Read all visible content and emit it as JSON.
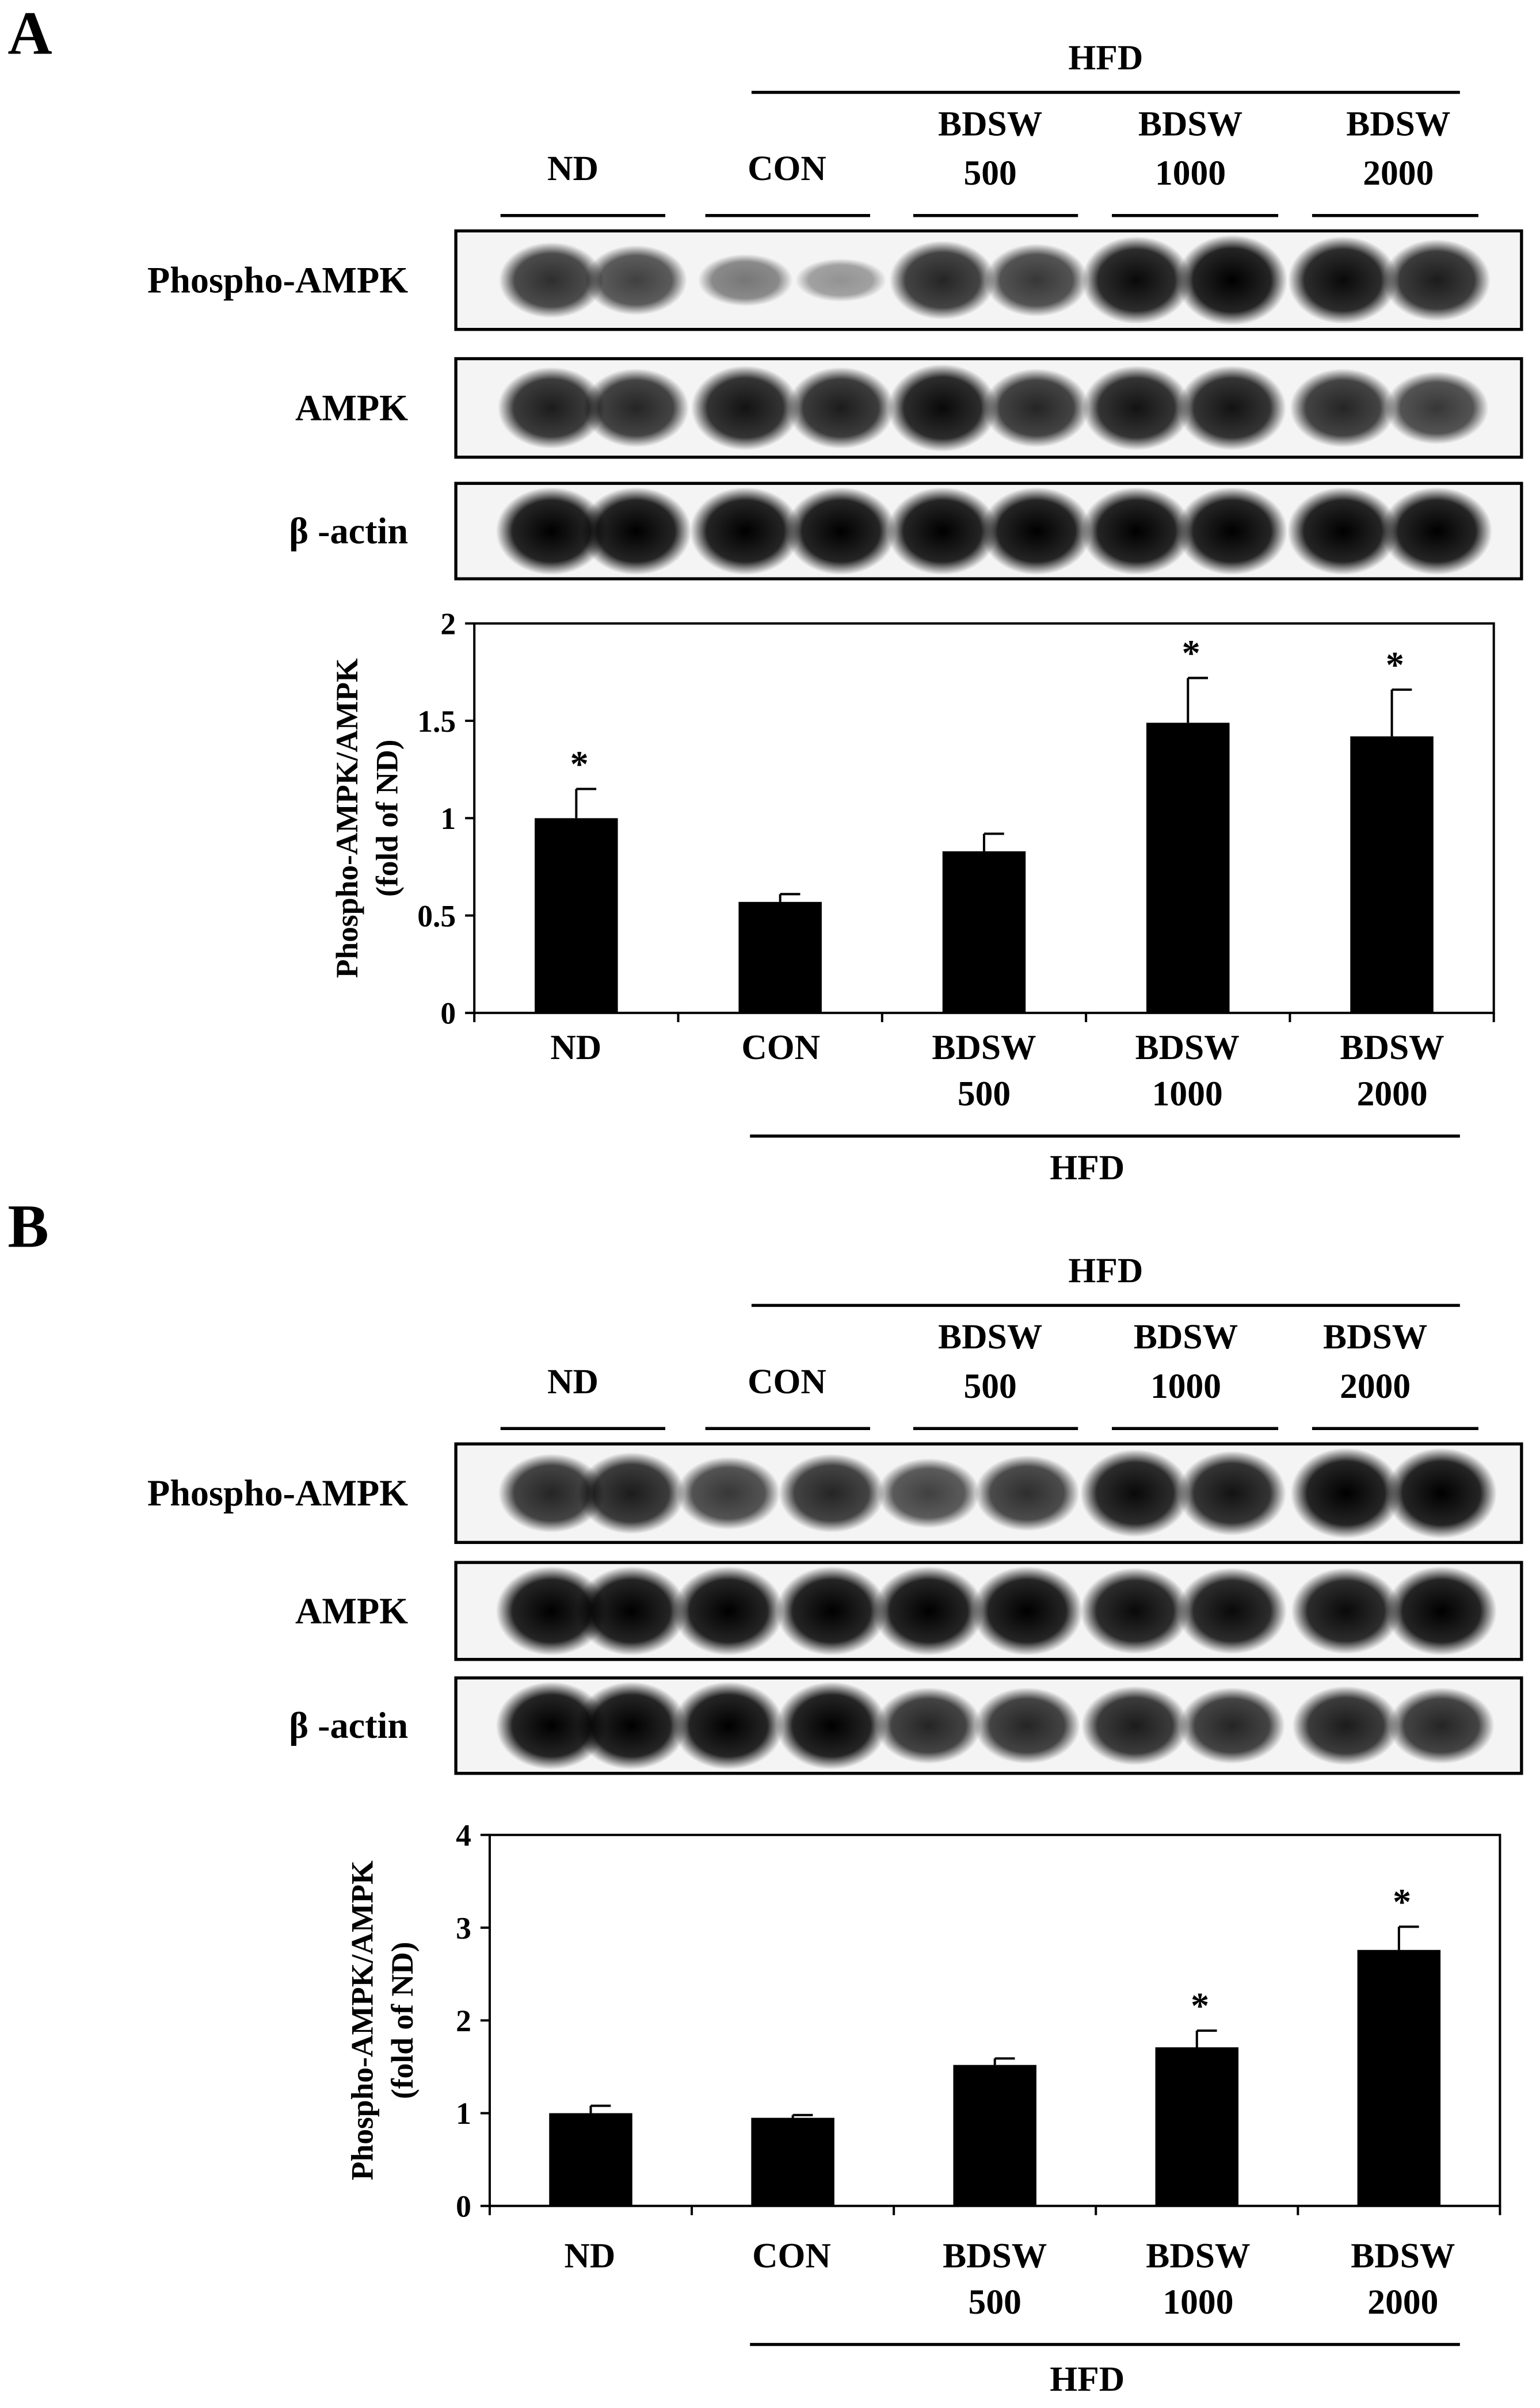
{
  "panels": [
    {
      "letter": "A",
      "group_label": "HFD",
      "blot_groups": [
        {
          "lines": [
            "ND"
          ]
        },
        {
          "lines": [
            "CON"
          ]
        },
        {
          "lines": [
            "BDSW",
            "500"
          ]
        },
        {
          "lines": [
            "BDSW",
            "1000"
          ]
        },
        {
          "lines": [
            "BDSW",
            "2000"
          ]
        }
      ],
      "blots": [
        {
          "label": "Phospho-AMPK",
          "lane_intensity": [
            0.75,
            0.65,
            0.35,
            0.2,
            0.8,
            0.7,
            0.95,
            1.0,
            0.95,
            0.85
          ]
        },
        {
          "label": "AMPK",
          "lane_intensity": [
            0.85,
            0.8,
            0.9,
            0.85,
            0.95,
            0.8,
            0.9,
            0.9,
            0.8,
            0.7
          ]
        },
        {
          "label": "β -actin",
          "lane_intensity": [
            1.0,
            1.0,
            1.0,
            1.0,
            1.0,
            1.0,
            1.0,
            1.0,
            1.0,
            1.0
          ]
        }
      ],
      "chart_data": {
        "type": "bar",
        "ylabel": [
          "Phospho-AMPK/AMPK",
          "(fold of ND)"
        ],
        "ylim": [
          0,
          2
        ],
        "yticks": [
          "0",
          "0.5",
          "1",
          "1.5",
          "2"
        ],
        "categories": [
          {
            "lines": [
              "ND"
            ]
          },
          {
            "lines": [
              "CON"
            ]
          },
          {
            "lines": [
              "BDSW",
              "500"
            ]
          },
          {
            "lines": [
              "BDSW",
              "1000"
            ]
          },
          {
            "lines": [
              "BDSW",
              "2000"
            ]
          }
        ],
        "values": [
          1.0,
          0.57,
          0.83,
          1.49,
          1.42
        ],
        "errors": [
          0.15,
          0.04,
          0.09,
          0.23,
          0.24
        ],
        "significance": [
          "*",
          "",
          "",
          "*",
          "*"
        ],
        "group_label": "HFD",
        "grid": false
      }
    },
    {
      "letter": "B",
      "group_label": "HFD",
      "blot_groups": [
        {
          "lines": [
            "ND"
          ]
        },
        {
          "lines": [
            "CON"
          ]
        },
        {
          "lines": [
            "BDSW",
            "500"
          ]
        },
        {
          "lines": [
            "BDSW",
            "1000"
          ]
        },
        {
          "lines": [
            "BDSW",
            "2000"
          ]
        }
      ],
      "blots": [
        {
          "label": "Phospho-AMPK",
          "lane_intensity": [
            0.8,
            0.85,
            0.7,
            0.8,
            0.65,
            0.75,
            0.95,
            0.9,
            1.0,
            1.0
          ]
        },
        {
          "label": "AMPK",
          "lane_intensity": [
            1.0,
            1.0,
            1.0,
            1.0,
            1.0,
            1.0,
            0.95,
            0.95,
            0.95,
            1.0
          ]
        },
        {
          "label": "β -actin",
          "lane_intensity": [
            1.0,
            1.0,
            1.0,
            1.0,
            0.8,
            0.8,
            0.85,
            0.8,
            0.85,
            0.8
          ]
        }
      ],
      "chart_data": {
        "type": "bar",
        "ylabel": [
          "Phospho-AMPK/AMPK",
          "(fold of ND)"
        ],
        "ylim": [
          0,
          4
        ],
        "yticks": [
          "0",
          "1",
          "2",
          "3",
          "4"
        ],
        "categories": [
          {
            "lines": [
              "ND"
            ]
          },
          {
            "lines": [
              "CON"
            ]
          },
          {
            "lines": [
              "BDSW",
              "500"
            ]
          },
          {
            "lines": [
              "BDSW",
              "1000"
            ]
          },
          {
            "lines": [
              "BDSW",
              "2000"
            ]
          }
        ],
        "values": [
          1.0,
          0.95,
          1.52,
          1.71,
          2.76
        ],
        "errors": [
          0.08,
          0.03,
          0.07,
          0.18,
          0.25
        ],
        "significance": [
          "",
          "",
          "",
          "*",
          "*"
        ],
        "group_label": "HFD",
        "grid": false
      }
    }
  ]
}
